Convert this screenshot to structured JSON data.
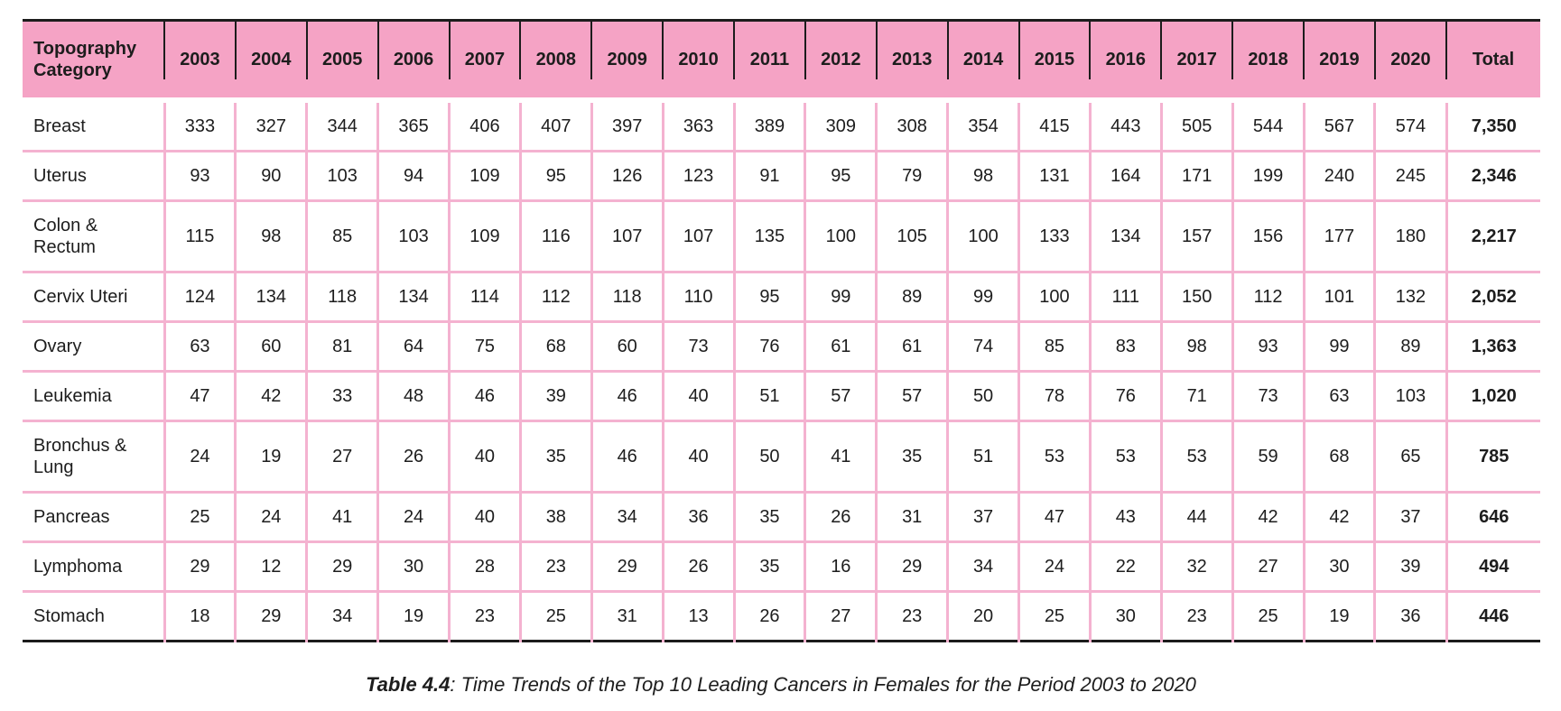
{
  "caption": {
    "label": "Table 4.4",
    "text": ": Time Trends of the Top 10 Leading Cancers in Females for the Period 2003 to 2020"
  },
  "colors": {
    "header_bg": "#f5a3c5",
    "grid_line": "#f4b2d0",
    "frame_line": "#1c1c1c",
    "text": "#1d1d1d"
  },
  "table": {
    "corner_header": "Topography Category",
    "year_headers": [
      "2003",
      "2004",
      "2005",
      "2006",
      "2007",
      "2008",
      "2009",
      "2010",
      "2011",
      "2012",
      "2013",
      "2014",
      "2015",
      "2016",
      "2017",
      "2018",
      "2019",
      "2020"
    ],
    "total_header": "Total",
    "rows": [
      {
        "category": "Breast",
        "values": [
          333,
          327,
          344,
          365,
          406,
          407,
          397,
          363,
          389,
          309,
          308,
          354,
          415,
          443,
          505,
          544,
          567,
          574
        ],
        "total": "7,350"
      },
      {
        "category": "Uterus",
        "values": [
          93,
          90,
          103,
          94,
          109,
          95,
          126,
          123,
          91,
          95,
          79,
          98,
          131,
          164,
          171,
          199,
          240,
          245
        ],
        "total": "2,346"
      },
      {
        "category": "Colon & Rectum",
        "values": [
          115,
          98,
          85,
          103,
          109,
          116,
          107,
          107,
          135,
          100,
          105,
          100,
          133,
          134,
          157,
          156,
          177,
          180
        ],
        "total": "2,217"
      },
      {
        "category": "Cervix Uteri",
        "values": [
          124,
          134,
          118,
          134,
          114,
          112,
          118,
          110,
          95,
          99,
          89,
          99,
          100,
          111,
          150,
          112,
          101,
          132
        ],
        "total": "2,052"
      },
      {
        "category": "Ovary",
        "values": [
          63,
          60,
          81,
          64,
          75,
          68,
          60,
          73,
          76,
          61,
          61,
          74,
          85,
          83,
          98,
          93,
          99,
          89
        ],
        "total": "1,363"
      },
      {
        "category": "Leukemia",
        "values": [
          47,
          42,
          33,
          48,
          46,
          39,
          46,
          40,
          51,
          57,
          57,
          50,
          78,
          76,
          71,
          73,
          63,
          103
        ],
        "total": "1,020"
      },
      {
        "category": "Bronchus & Lung",
        "values": [
          24,
          19,
          27,
          26,
          40,
          35,
          46,
          40,
          50,
          41,
          35,
          51,
          53,
          53,
          53,
          59,
          68,
          65
        ],
        "total": "785"
      },
      {
        "category": "Pancreas",
        "values": [
          25,
          24,
          41,
          24,
          40,
          38,
          34,
          36,
          35,
          26,
          31,
          37,
          47,
          43,
          44,
          42,
          42,
          37
        ],
        "total": "646"
      },
      {
        "category": "Lymphoma",
        "values": [
          29,
          12,
          29,
          30,
          28,
          23,
          29,
          26,
          35,
          16,
          29,
          34,
          24,
          22,
          32,
          27,
          30,
          39
        ],
        "total": "494"
      },
      {
        "category": "Stomach",
        "values": [
          18,
          29,
          34,
          19,
          23,
          25,
          31,
          13,
          26,
          27,
          23,
          20,
          25,
          30,
          23,
          25,
          19,
          36
        ],
        "total": "446"
      }
    ]
  }
}
